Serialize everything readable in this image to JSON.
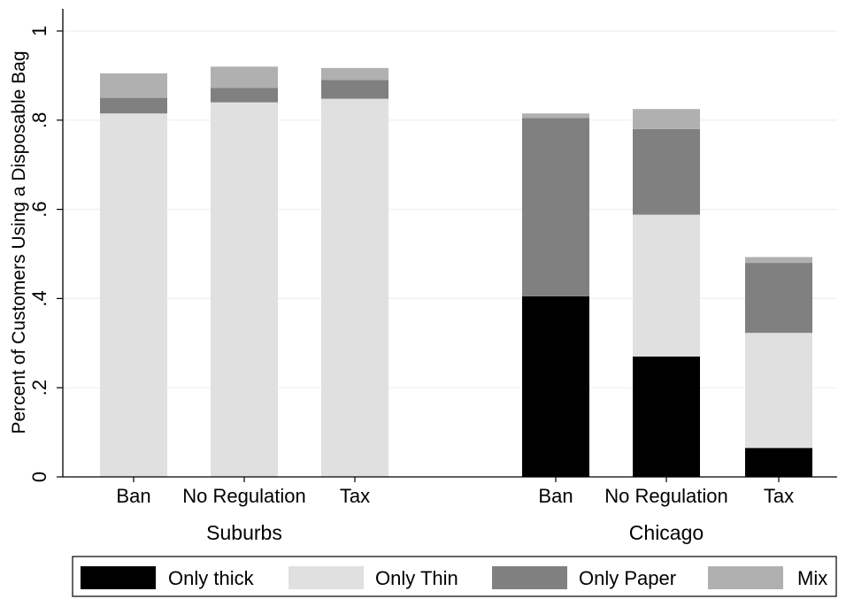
{
  "chart_data": {
    "type": "bar",
    "stacked": true,
    "ylabel": "Percent of Customers Using a Disposable Bag",
    "xlabel": "",
    "title": "",
    "ylim": [
      0,
      1
    ],
    "yticks": [
      {
        "value": 0,
        "label": "0"
      },
      {
        "value": 0.2,
        "label": ".2"
      },
      {
        "value": 0.4,
        "label": ".4"
      },
      {
        "value": 0.6,
        "label": ".6"
      },
      {
        "value": 0.8,
        "label": ".8"
      },
      {
        "value": 1,
        "label": "1"
      }
    ],
    "grid": true,
    "legend_position": "bottom",
    "groups": [
      {
        "name": "Suburbs",
        "categories": [
          "Ban",
          "No Regulation",
          "Tax"
        ]
      },
      {
        "name": "Chicago",
        "categories": [
          "Ban",
          "No Regulation",
          "Tax"
        ]
      }
    ],
    "series": [
      {
        "name": "Only thick",
        "color": "#000000",
        "values": [
          [
            0,
            0,
            0
          ],
          [
            0.405,
            0.27,
            0.065
          ]
        ]
      },
      {
        "name": "Only Thin",
        "color": "#e0e0e0",
        "values": [
          [
            0.815,
            0.84,
            0.848
          ],
          [
            0,
            0.318,
            0.258
          ]
        ]
      },
      {
        "name": "Only Paper",
        "color": "#808080",
        "values": [
          [
            0.035,
            0.032,
            0.042
          ],
          [
            0.4,
            0.192,
            0.157
          ]
        ]
      },
      {
        "name": "Mix",
        "color": "#b0b0b0",
        "values": [
          [
            0.055,
            0.048,
            0.027
          ],
          [
            0.01,
            0.045,
            0.013
          ]
        ]
      }
    ]
  }
}
